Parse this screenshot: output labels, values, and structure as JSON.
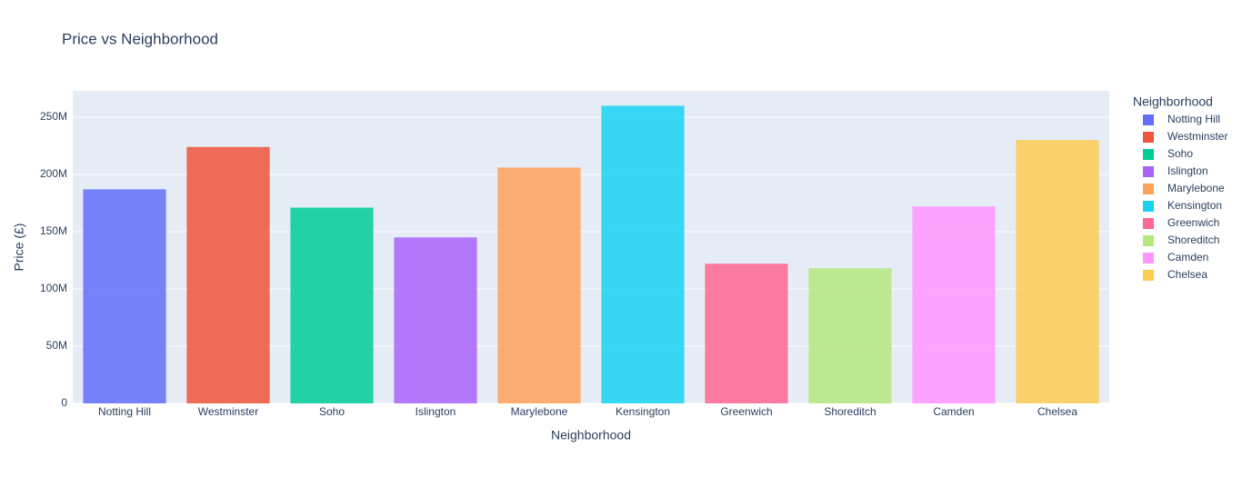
{
  "chart_data": {
    "type": "bar",
    "title": "Price vs Neighborhood",
    "x_label": "Neighborhood",
    "y_label": "Price (£)",
    "legend_title": "Neighborhood",
    "categories": [
      "Notting Hill",
      "Westminster",
      "Soho",
      "Islington",
      "Marylebone",
      "Kensington",
      "Greenwich",
      "Shoreditch",
      "Camden",
      "Chelsea"
    ],
    "values": [
      187000000,
      224000000,
      171000000,
      145000000,
      206000000,
      260000000,
      122000000,
      118000000,
      172000000,
      230000000
    ],
    "colors": [
      "#636efa",
      "#ef553b",
      "#00cc96",
      "#ab63fa",
      "#ffa15a",
      "#19d3f3",
      "#ff6692",
      "#b6e880",
      "#ff97ff",
      "#fecb52"
    ],
    "ylim": [
      0,
      273000000
    ],
    "yticks": [
      0,
      {
        "value": 50000000,
        "label": "50M"
      },
      {
        "value": 100000000,
        "label": "100M"
      },
      {
        "value": 150000000,
        "label": "150M"
      },
      {
        "value": 200000000,
        "label": "200M"
      },
      {
        "value": 250000000,
        "label": "250M"
      }
    ],
    "grid": true,
    "legend": "right"
  }
}
